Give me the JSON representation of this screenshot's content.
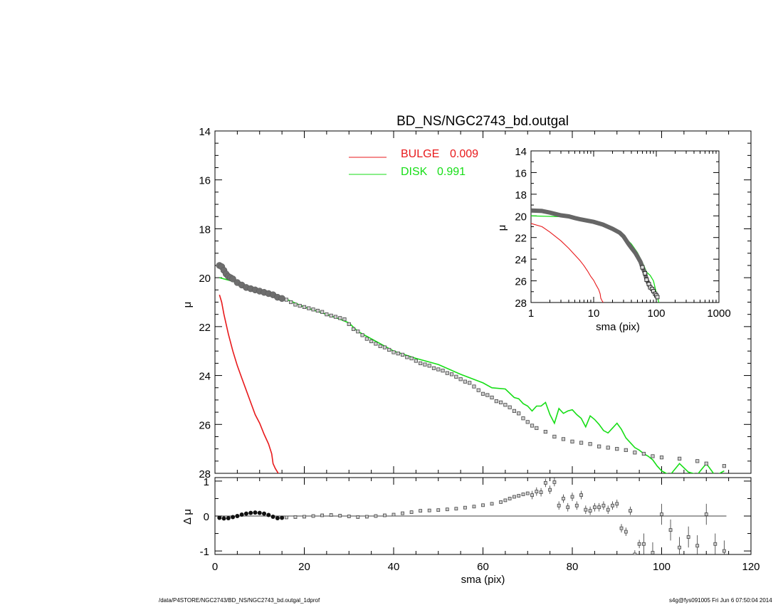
{
  "page": {
    "footer_left": "/data/P4STORE/NGC2743/BD_NS/NGC2743_bd.outgal_1dprof",
    "footer_right": "s4g@fys091005  Fri Jun  6 07:50:04 2014"
  },
  "chart_data": [
    {
      "id": "main",
      "type": "line",
      "title": "BD_NS/NGC2743_bd.outgal",
      "xlabel": "",
      "ylabel": "μ",
      "xlim": [
        0,
        120
      ],
      "ylim": [
        28,
        14
      ],
      "y_inverted": true,
      "yticks": [
        "14",
        "16",
        "18",
        "20",
        "22",
        "24",
        "26",
        "28"
      ],
      "legend": {
        "placement": "top-center",
        "entries": [
          {
            "label": "BULGE",
            "value": "0.009",
            "color": "#e8191b"
          },
          {
            "label": "DISK",
            "value": "0.991",
            "color": "#16de16"
          }
        ]
      },
      "series": [
        {
          "name": "BULGE",
          "color": "#e8191b",
          "style": "line",
          "x": [
            1,
            1.5,
            2,
            3,
            4,
            5,
            6,
            7,
            8,
            9,
            10,
            11,
            12,
            12.7,
            13,
            13.5,
            14,
            14.5
          ],
          "y": [
            20.7,
            21.0,
            21.5,
            22.3,
            23.0,
            23.6,
            24.1,
            24.6,
            25.1,
            25.6,
            25.95,
            26.4,
            26.8,
            27.2,
            27.6,
            27.8,
            27.95,
            28.1
          ]
        },
        {
          "name": "DISK",
          "color": "#16de16",
          "style": "line",
          "x": [
            1,
            5,
            10,
            15,
            20,
            25,
            28,
            30,
            32,
            35,
            40,
            45,
            50,
            55,
            60,
            62,
            65,
            67,
            68,
            69,
            70,
            71,
            72,
            73,
            74,
            75,
            76,
            77,
            78,
            79,
            80,
            81,
            82,
            83,
            84,
            85,
            86,
            87,
            88,
            89,
            90,
            91,
            92,
            93,
            94,
            95,
            96,
            97,
            98,
            99,
            100,
            101,
            102,
            104,
            106,
            108,
            110,
            112,
            114
          ],
          "y": [
            20.0,
            20.2,
            20.5,
            20.8,
            21.2,
            21.5,
            21.7,
            21.85,
            22.2,
            22.5,
            23.0,
            23.3,
            23.55,
            23.95,
            24.3,
            24.5,
            24.55,
            24.9,
            24.95,
            25.15,
            25.25,
            25.45,
            25.25,
            25.25,
            25.1,
            25.6,
            25.95,
            25.35,
            25.55,
            25.45,
            25.4,
            25.6,
            25.75,
            26.1,
            25.65,
            25.8,
            26.0,
            26.25,
            26.35,
            26.15,
            25.95,
            26.2,
            26.55,
            26.75,
            26.95,
            27.05,
            27.2,
            27.3,
            27.45,
            27.7,
            27.9,
            28.0,
            28.05,
            27.6,
            27.95,
            28.05,
            27.6,
            28.1,
            27.9
          ]
        },
        {
          "name": "Data",
          "color": "#3a3a3a",
          "style": "points",
          "x": [
            1,
            1.5,
            2,
            2.5,
            3,
            3.5,
            4,
            5,
            6,
            7,
            8,
            9,
            10,
            11,
            12,
            13,
            14,
            15,
            16,
            17,
            18,
            19,
            20,
            21,
            22,
            23,
            24,
            25,
            26,
            27,
            28,
            29,
            30,
            31,
            32,
            33,
            34,
            35,
            36,
            37,
            38,
            39,
            40,
            41,
            42,
            43,
            44,
            45,
            46,
            47,
            48,
            49,
            50,
            51,
            52,
            53,
            54,
            55,
            56,
            57,
            58,
            59,
            60,
            61,
            62,
            63,
            64,
            65,
            66,
            67,
            68,
            69,
            70,
            71,
            72,
            74,
            76,
            78,
            80,
            82,
            84,
            86,
            88,
            90,
            92,
            94,
            96,
            98,
            100,
            104,
            108,
            110,
            114
          ],
          "y": [
            19.5,
            19.55,
            19.7,
            19.85,
            19.95,
            20.0,
            20.05,
            20.2,
            20.3,
            20.4,
            20.45,
            20.5,
            20.55,
            20.6,
            20.65,
            20.7,
            20.8,
            20.85,
            20.9,
            21.0,
            21.1,
            21.15,
            21.2,
            21.25,
            21.3,
            21.35,
            21.4,
            21.5,
            21.55,
            21.6,
            21.65,
            21.7,
            21.9,
            22.1,
            22.2,
            22.35,
            22.5,
            22.6,
            22.7,
            22.8,
            22.85,
            22.95,
            23.05,
            23.1,
            23.15,
            23.25,
            23.3,
            23.4,
            23.5,
            23.55,
            23.6,
            23.7,
            23.75,
            23.8,
            23.9,
            23.95,
            24.05,
            24.15,
            24.25,
            24.3,
            24.45,
            24.6,
            24.75,
            24.8,
            24.9,
            25.05,
            25.1,
            25.2,
            25.3,
            25.45,
            25.55,
            25.75,
            25.9,
            26.05,
            26.15,
            26.3,
            26.5,
            26.6,
            26.7,
            26.75,
            26.8,
            26.9,
            26.95,
            27.0,
            27.05,
            27.15,
            27.2,
            27.3,
            27.35,
            27.4,
            27.5,
            27.6,
            27.7
          ]
        }
      ]
    },
    {
      "id": "inset",
      "type": "line",
      "xlabel": "sma (pix)",
      "ylabel": "μ",
      "xscale": "log",
      "xlim": [
        1,
        1000
      ],
      "ylim": [
        28,
        14
      ],
      "y_inverted": true,
      "xticks": [
        "1",
        "10",
        "100",
        "1000"
      ],
      "yticks": [
        "14",
        "16",
        "18",
        "20",
        "22",
        "24",
        "26",
        "28"
      ],
      "series": [
        {
          "name": "BULGE",
          "color": "#e8191b",
          "x": [
            1,
            1.5,
            2,
            3,
            4,
            5,
            6,
            7,
            8,
            9,
            10,
            11,
            12,
            12.7,
            13,
            13.5,
            14,
            14.5
          ],
          "y": [
            20.7,
            21.0,
            21.5,
            22.3,
            23.0,
            23.6,
            24.1,
            24.6,
            25.1,
            25.6,
            25.95,
            26.4,
            26.8,
            27.2,
            27.6,
            27.8,
            27.95,
            28.1
          ]
        },
        {
          "name": "DISK",
          "color": "#16de16",
          "x": [
            1,
            2,
            4,
            6,
            8,
            10,
            14,
            20,
            28,
            40,
            50,
            60,
            70,
            80,
            90,
            100,
            110
          ],
          "y": [
            20.0,
            20.05,
            20.1,
            20.2,
            20.3,
            20.5,
            20.8,
            21.2,
            21.7,
            22.6,
            23.4,
            24.3,
            25.2,
            25.5,
            26.0,
            27.1,
            28.0
          ]
        },
        {
          "name": "Data",
          "color": "#3a3a3a",
          "x": [
            1,
            1.5,
            2,
            3,
            4,
            5,
            6,
            8,
            10,
            14,
            20,
            26,
            30,
            36,
            40,
            46,
            50,
            56,
            60,
            66,
            70,
            76,
            80,
            86,
            90,
            96,
            100,
            104
          ],
          "y": [
            19.5,
            19.55,
            19.7,
            19.95,
            20.05,
            20.2,
            20.3,
            20.45,
            20.55,
            20.8,
            21.2,
            21.55,
            21.9,
            22.6,
            22.95,
            23.4,
            23.75,
            24.25,
            24.75,
            25.3,
            25.9,
            26.3,
            26.6,
            26.75,
            26.95,
            27.2,
            27.35,
            27.5
          ]
        }
      ]
    },
    {
      "id": "residual",
      "type": "scatter",
      "xlabel": "sma (pix)",
      "ylabel": "Δ μ",
      "xlim": [
        0,
        120
      ],
      "ylim": [
        -1.1,
        1.1
      ],
      "xticks": [
        "0",
        "20",
        "40",
        "60",
        "80",
        "100",
        "120"
      ],
      "yticks": [
        "1",
        "0",
        "-1"
      ],
      "series": [
        {
          "name": "Δμ",
          "color": "#3a3a3a",
          "x": [
            1,
            2,
            3,
            4,
            5,
            6,
            7,
            8,
            9,
            10,
            11,
            12,
            13,
            14,
            15,
            16,
            18,
            20,
            22,
            24,
            26,
            28,
            30,
            32,
            34,
            36,
            38,
            40,
            42,
            44,
            46,
            48,
            50,
            52,
            54,
            56,
            58,
            60,
            62,
            64,
            65,
            66,
            67,
            68,
            69,
            70,
            71,
            72,
            73,
            74,
            75,
            76,
            77,
            78,
            79,
            80,
            81,
            82,
            83,
            84,
            85,
            86,
            87,
            88,
            89,
            90,
            91,
            92,
            93,
            94,
            95,
            96,
            98,
            100,
            102,
            104,
            106,
            108,
            110,
            112,
            114
          ],
          "y": [
            -0.05,
            -0.07,
            -0.06,
            -0.03,
            0.0,
            0.04,
            0.07,
            0.09,
            0.1,
            0.09,
            0.07,
            0.03,
            -0.02,
            -0.06,
            -0.05,
            -0.04,
            -0.03,
            -0.02,
            0.0,
            0.02,
            0.03,
            0.01,
            -0.01,
            -0.03,
            -0.02,
            0.0,
            0.02,
            0.04,
            0.08,
            0.11,
            0.15,
            0.16,
            0.17,
            0.19,
            0.21,
            0.24,
            0.27,
            0.31,
            0.35,
            0.4,
            0.45,
            0.5,
            0.55,
            0.58,
            0.62,
            0.65,
            0.6,
            0.7,
            0.68,
            0.95,
            0.75,
            0.97,
            0.3,
            0.5,
            0.25,
            0.55,
            0.3,
            0.6,
            0.18,
            0.15,
            0.25,
            0.25,
            0.3,
            0.18,
            0.3,
            0.35,
            -0.35,
            -0.45,
            0.15,
            -1.1,
            -0.8,
            -0.8,
            -1.05,
            0.05,
            -0.4,
            -0.9,
            -0.6,
            -0.85,
            0.05,
            -0.8,
            -1.0
          ]
        }
      ]
    }
  ]
}
